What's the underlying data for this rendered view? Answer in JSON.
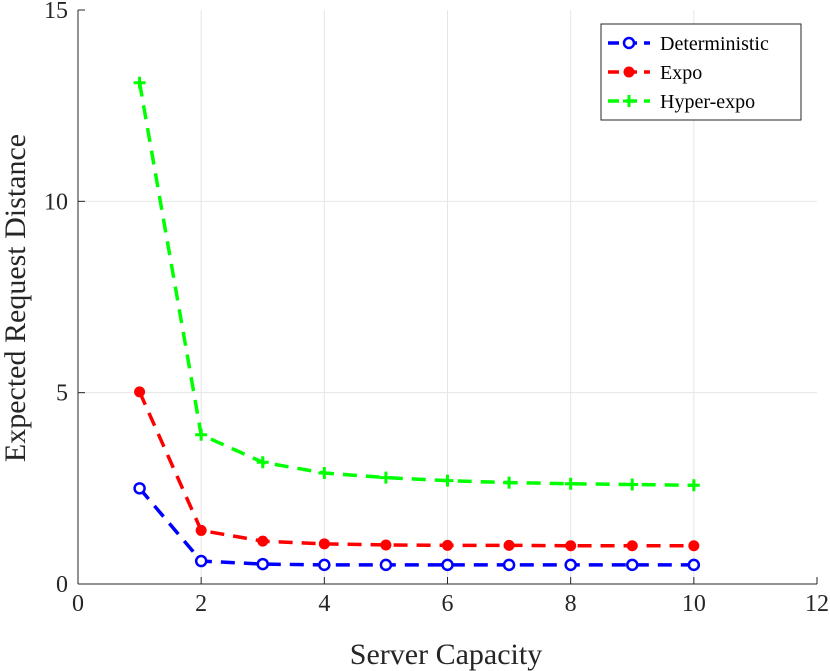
{
  "chart_data": {
    "type": "line",
    "xlabel": "Server Capacity",
    "ylabel": "Expected Request Distance",
    "xlim": [
      0,
      12
    ],
    "ylim": [
      0,
      15
    ],
    "xticks": [
      0,
      2,
      4,
      6,
      8,
      10,
      12
    ],
    "yticks": [
      0,
      5,
      10,
      15
    ],
    "grid": true,
    "legend_position": "top-right",
    "x": [
      1,
      2,
      3,
      4,
      5,
      6,
      7,
      8,
      9,
      10
    ],
    "series": [
      {
        "name": "Deterministic",
        "color": "#0000ff",
        "marker": "open-circle",
        "line_style": "dashed",
        "values": [
          2.5,
          0.6,
          0.52,
          0.5,
          0.5,
          0.5,
          0.5,
          0.5,
          0.5,
          0.5
        ]
      },
      {
        "name": "Expo",
        "color": "#ff0000",
        "marker": "filled-circle",
        "line_style": "dashed",
        "values": [
          5.02,
          1.4,
          1.12,
          1.05,
          1.02,
          1.01,
          1.01,
          1.0,
          1.0,
          1.0
        ]
      },
      {
        "name": "Hyper-expo",
        "color": "#00ff00",
        "marker": "plus",
        "line_style": "dashed",
        "values": [
          13.1,
          3.9,
          3.18,
          2.9,
          2.78,
          2.7,
          2.65,
          2.62,
          2.6,
          2.58
        ]
      }
    ]
  }
}
